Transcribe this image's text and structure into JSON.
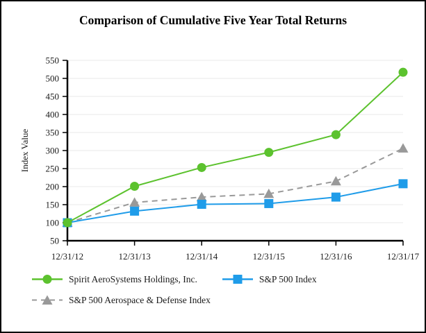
{
  "title": "Comparison of Cumulative Five Year Total Returns",
  "chart_data": {
    "type": "line",
    "title": "Comparison of Cumulative Five Year Total Returns",
    "xlabel": "",
    "ylabel": "Index Value",
    "ylim": [
      50,
      550
    ],
    "ytick_step": 50,
    "grid": true,
    "legend_position": "bottom-left",
    "categories": [
      "12/31/12",
      "12/31/13",
      "12/31/14",
      "12/31/15",
      "12/31/16",
      "12/31/17"
    ],
    "series": [
      {
        "name": "Spirit AeroSystems Holdings, Inc.",
        "values": [
          100,
          201,
          253,
          295,
          344,
          517
        ],
        "color": "#5CC22E",
        "marker": "circle",
        "line_style": "solid"
      },
      {
        "name": "S&P 500 Index",
        "values": [
          100,
          132,
          151,
          153,
          171,
          208
        ],
        "color": "#1F9CE9",
        "marker": "square",
        "line_style": "solid"
      },
      {
        "name": "S&P 500 Aerospace & Defense Index",
        "values": [
          100,
          156,
          171,
          180,
          215,
          306
        ],
        "color": "#999999",
        "marker": "triangle",
        "line_style": "dashed"
      }
    ]
  },
  "colors": {
    "background": "#FFFFFF",
    "frame_border": "#000000",
    "axis": "#000000",
    "gridline": "#E9E9E9",
    "text": "#1A1A1A",
    "spirit_green": "#5CC22E",
    "sp500_blue": "#1F9CE9",
    "aerospace_gray": "#999999"
  }
}
